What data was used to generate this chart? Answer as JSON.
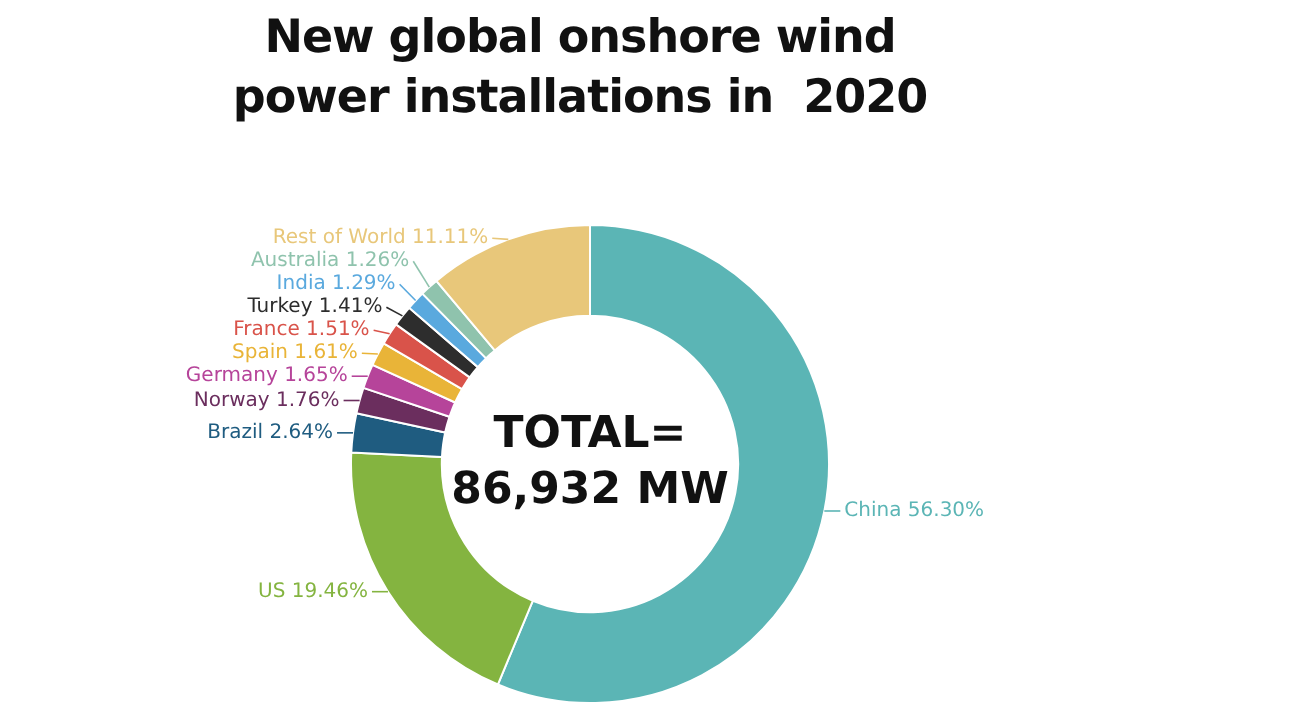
{
  "chart_data": {
    "type": "donut",
    "title": "New global onshore wind\npower installations in  2020",
    "categories": [
      "China",
      "US",
      "Brazil",
      "Norway",
      "Germany",
      "Spain",
      "France",
      "Turkey",
      "India",
      "Australia",
      "Rest of World"
    ],
    "values": [
      56.3,
      19.46,
      2.64,
      1.76,
      1.65,
      1.61,
      1.51,
      1.41,
      1.29,
      1.26,
      11.11
    ],
    "value_labels": [
      "56.30%",
      "19.46%",
      "2.64%",
      "1.76%",
      "1.65%",
      "1.61%",
      "1.51%",
      "1.41%",
      "1.29%",
      "1.26%",
      "11.11%"
    ],
    "colors": [
      "#5bb5b5",
      "#84b440",
      "#1f5c80",
      "#6b2e5e",
      "#b6449a",
      "#e9b438",
      "#d9534a",
      "#2d2d2d",
      "#5aa9de",
      "#8fc3ad",
      "#e8c77a"
    ],
    "annotations": [
      "TOTAL=\n86,932 MW"
    ],
    "legend": false
  }
}
